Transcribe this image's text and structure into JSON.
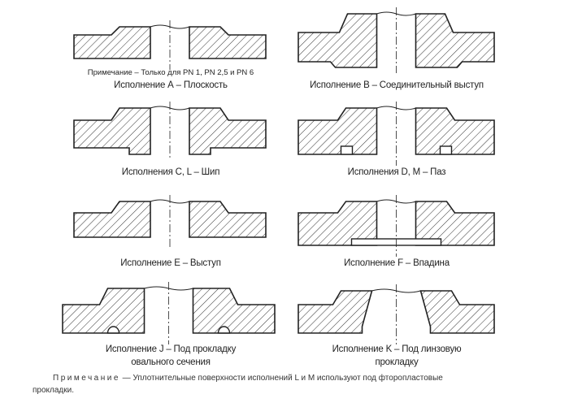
{
  "figures": [
    {
      "id": "A",
      "caption": "Исполнение А – Плоскость",
      "note": "Примечание – Только для PN 1, PN 2,5 и PN 6"
    },
    {
      "id": "B",
      "caption": "Исполнение В – Соединительный выступ"
    },
    {
      "id": "C",
      "caption": "Исполнения С, L – Шип"
    },
    {
      "id": "D",
      "caption": "Исполнения D, M – Паз"
    },
    {
      "id": "E",
      "caption": "Исполнение Е – Выступ"
    },
    {
      "id": "F",
      "caption": "Исполнение F – Впадина"
    },
    {
      "id": "J",
      "caption_line1": "Исполнение J – Под прокладку",
      "caption_line2": "овального сечения"
    },
    {
      "id": "K",
      "caption_line1": "Исполнение K – Под линзовую",
      "caption_line2": "прокладку"
    }
  ],
  "footnote": {
    "label": "Примечание",
    "text": " — Уплотнительные поверхности исполнений L и M используют под фторопластовые",
    "text2": "прокладки."
  },
  "colors": {
    "line": "#222222",
    "background": "#ffffff"
  }
}
